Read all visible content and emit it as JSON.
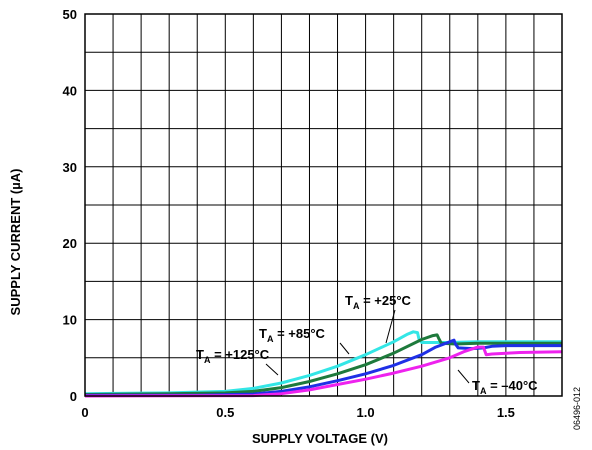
{
  "chart_data": {
    "type": "line",
    "title": "",
    "xlabel": "SUPPLY VOLTAGE (V)",
    "ylabel": "SUPPLY CURRENT (µA)",
    "xlim": [
      0,
      1.7
    ],
    "ylim": [
      0,
      50
    ],
    "x_ticks": [
      0,
      0.5,
      1.0,
      1.5
    ],
    "x_tick_labels": [
      "0",
      "0.5",
      "1.0",
      "1.5"
    ],
    "y_ticks": [
      0,
      10,
      20,
      30,
      40,
      50
    ],
    "y_tick_labels": [
      "0",
      "10",
      "20",
      "30",
      "40",
      "50"
    ],
    "grid": true,
    "series": [
      {
        "color": "#33e6e6",
        "points": [
          [
            0,
            0.3
          ],
          [
            0.3,
            0.4
          ],
          [
            0.5,
            0.6
          ],
          [
            0.6,
            1.0
          ],
          [
            0.7,
            1.7
          ],
          [
            0.8,
            2.7
          ],
          [
            0.9,
            3.9
          ],
          [
            1.0,
            5.4
          ],
          [
            1.1,
            7.1
          ],
          [
            1.15,
            8.1
          ],
          [
            1.17,
            8.4
          ],
          [
            1.185,
            8.3
          ],
          [
            1.19,
            7.5
          ],
          [
            1.2,
            7.0
          ],
          [
            1.3,
            7.0
          ],
          [
            1.4,
            7.1
          ],
          [
            1.5,
            7.1
          ],
          [
            1.7,
            7.1
          ]
        ]
      },
      {
        "color": "#1e7a3c",
        "points": [
          [
            0,
            0.2
          ],
          [
            0.3,
            0.3
          ],
          [
            0.5,
            0.4
          ],
          [
            0.6,
            0.6
          ],
          [
            0.7,
            1.1
          ],
          [
            0.8,
            1.9
          ],
          [
            0.9,
            2.9
          ],
          [
            1.0,
            4.1
          ],
          [
            1.1,
            5.6
          ],
          [
            1.2,
            7.4
          ],
          [
            1.24,
            7.9
          ],
          [
            1.255,
            8.0
          ],
          [
            1.26,
            7.6
          ],
          [
            1.27,
            6.9
          ],
          [
            1.32,
            6.8
          ],
          [
            1.4,
            6.9
          ],
          [
            1.5,
            6.9
          ],
          [
            1.7,
            6.9
          ]
        ]
      },
      {
        "color": "#1f30e6",
        "points": [
          [
            0,
            0.1
          ],
          [
            0.4,
            0.1
          ],
          [
            0.6,
            0.25
          ],
          [
            0.7,
            0.6
          ],
          [
            0.8,
            1.2
          ],
          [
            0.9,
            2.0
          ],
          [
            1.0,
            2.9
          ],
          [
            1.1,
            4.0
          ],
          [
            1.2,
            5.4
          ],
          [
            1.25,
            6.4
          ],
          [
            1.3,
            7.1
          ],
          [
            1.315,
            7.3
          ],
          [
            1.32,
            6.8
          ],
          [
            1.33,
            6.3
          ],
          [
            1.38,
            6.2
          ],
          [
            1.42,
            6.3
          ],
          [
            1.45,
            6.5
          ],
          [
            1.5,
            6.6
          ],
          [
            1.6,
            6.6
          ],
          [
            1.7,
            6.6
          ]
        ]
      },
      {
        "color": "#ee22ee",
        "points": [
          [
            0,
            0.0
          ],
          [
            0.6,
            0.05
          ],
          [
            0.7,
            0.3
          ],
          [
            0.8,
            0.8
          ],
          [
            0.9,
            1.5
          ],
          [
            1.0,
            2.2
          ],
          [
            1.1,
            3.0
          ],
          [
            1.2,
            3.9
          ],
          [
            1.3,
            5.0
          ],
          [
            1.35,
            5.8
          ],
          [
            1.4,
            6.4
          ],
          [
            1.42,
            6.4
          ],
          [
            1.43,
            5.4
          ],
          [
            1.45,
            5.5
          ],
          [
            1.55,
            5.7
          ],
          [
            1.7,
            5.8
          ]
        ]
      }
    ],
    "annotations": [
      {
        "main": "T",
        "sub": "A",
        "rest": " = +25°C"
      },
      {
        "main": "T",
        "sub": "A",
        "rest": " = +85°C"
      },
      {
        "main": "T",
        "sub": "A",
        "rest": " = +125°C"
      },
      {
        "main": "T",
        "sub": "A",
        "rest": " = –40°C"
      }
    ]
  },
  "figure_id": "06496-012"
}
